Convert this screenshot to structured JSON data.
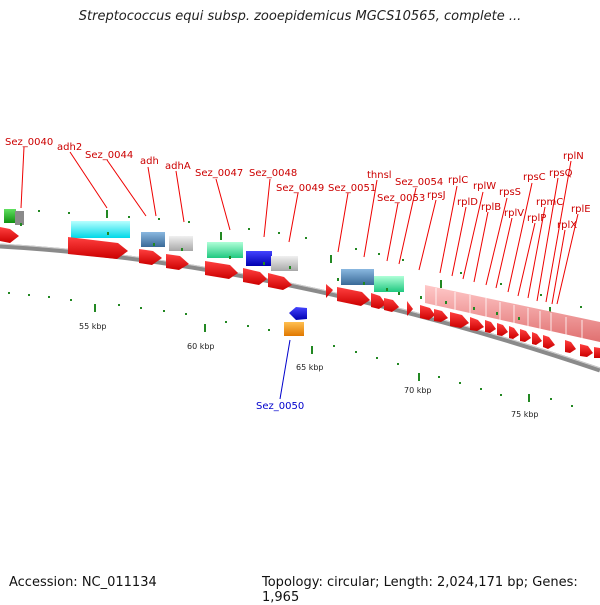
{
  "title": "Streptococcus equi subsp. zooepidemicus MGCS10565, complete ...",
  "footer": {
    "accession": "Accession: NC_011134",
    "summary": "Topology: circular; Length: 2,024,171 bp; Genes: 1,965"
  },
  "colors": {
    "gene_red": "#ee0000",
    "label_red": "#cc0000",
    "label_blue": "#0000cc",
    "tick_green": "#228822",
    "backbone": "#8a8a8a"
  },
  "scale_labels": [
    "55 kbp",
    "60 kbp",
    "65 kbp",
    "70 kbp",
    "75 kbp"
  ],
  "upper_labels": {
    "Sez_0040": "Sez_0040",
    "adh2": "adh2",
    "Sez_0044": "Sez_0044",
    "adh": "adh",
    "adhA": "adhA",
    "Sez_0047": "Sez_0047",
    "Sez_0048": "Sez_0048",
    "Sez_0049": "Sez_0049",
    "Sez_0051": "Sez_0051",
    "thnsl": "thnsl",
    "Sez_0054": "Sez_0054",
    "Sez_0053": "Sez_0053",
    "rpsJ": "rpsJ",
    "rplC": "rplC",
    "rplD": "rplD",
    "rplW": "rplW",
    "rplB": "rplB",
    "rpsS": "rpsS",
    "rplV": "rplV",
    "rpsC": "rpsC",
    "rplP": "rplP",
    "rpmC": "rpmC",
    "rpsQ": "rpsQ",
    "rplN": "rplN",
    "rplX": "rplX",
    "rplE": "rplE"
  },
  "lower_labels": {
    "Sez_0050": "Sez_0050"
  }
}
